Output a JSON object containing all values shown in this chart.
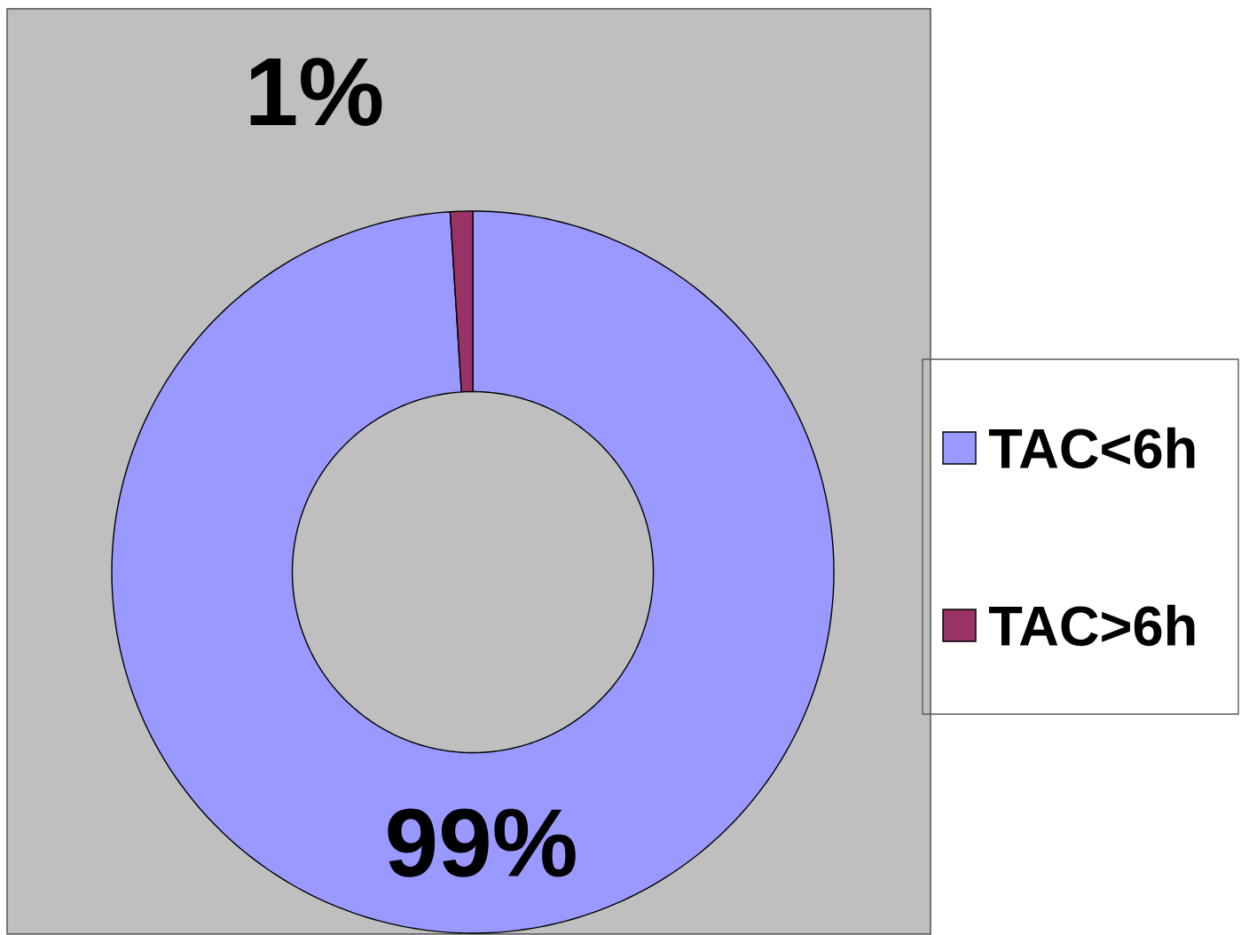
{
  "chart_data": {
    "type": "donut",
    "categories": [
      "TAC<6h",
      "TAC>6h"
    ],
    "values": [
      99,
      1
    ],
    "colors": [
      "#9999ff",
      "#993366"
    ],
    "value_labels": [
      "99%",
      "1%"
    ],
    "legend": "right"
  }
}
